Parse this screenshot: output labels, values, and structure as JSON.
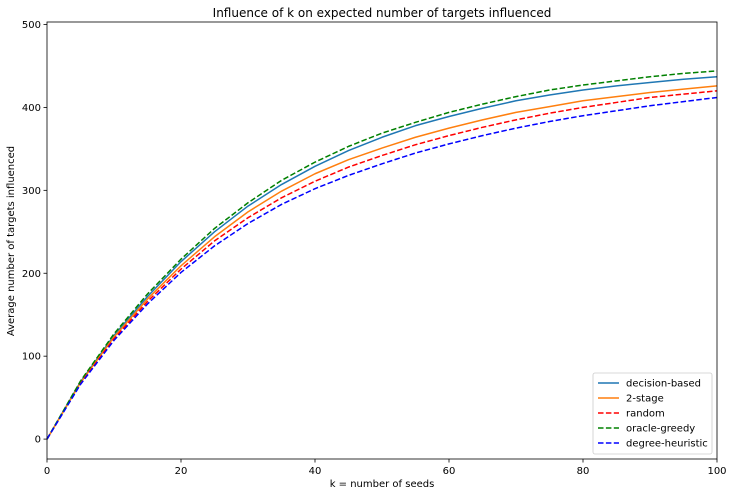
{
  "chart_data": {
    "type": "line",
    "title": "Influence of k on expected number of targets influenced",
    "xlabel": "k = number of seeds",
    "ylabel": "Average number of targets influenced",
    "xlim": [
      0,
      100
    ],
    "ylim": [
      -24,
      503
    ],
    "xticks": [
      0,
      20,
      40,
      60,
      80,
      100
    ],
    "yticks": [
      0,
      100,
      200,
      300,
      400,
      500
    ],
    "grid": false,
    "legend_position": "bottom-right",
    "x": [
      0,
      5,
      10,
      15,
      20,
      25,
      30,
      35,
      40,
      45,
      50,
      55,
      60,
      65,
      70,
      75,
      80,
      85,
      90,
      95,
      100
    ],
    "series": [
      {
        "name": "decision-based",
        "color": "#1f77b4",
        "style": "solid",
        "values": [
          0,
          69,
          125,
          172,
          214,
          250,
          281,
          307,
          329,
          348,
          364,
          378,
          389,
          399,
          408,
          415,
          421,
          426,
          430,
          434,
          437
        ]
      },
      {
        "name": "2-stage",
        "color": "#ff7f0e",
        "style": "solid",
        "values": [
          0,
          68,
          123,
          169,
          209,
          244,
          274,
          299,
          320,
          337,
          351,
          364,
          375,
          385,
          394,
          401,
          408,
          413,
          418,
          422,
          426
        ]
      },
      {
        "name": "random",
        "color": "#ff0000",
        "style": "dashed",
        "values": [
          0,
          67,
          121,
          166,
          205,
          239,
          267,
          291,
          311,
          328,
          342,
          355,
          366,
          376,
          385,
          393,
          400,
          406,
          412,
          416,
          420
        ]
      },
      {
        "name": "oracle-greedy",
        "color": "#008000",
        "style": "dashed",
        "values": [
          0,
          70,
          127,
          175,
          217,
          254,
          285,
          312,
          334,
          353,
          369,
          382,
          394,
          404,
          413,
          421,
          427,
          432,
          437,
          441,
          444
        ]
      },
      {
        "name": "degree-heuristic",
        "color": "#0000ff",
        "style": "dashed",
        "values": [
          0,
          66,
          119,
          163,
          201,
          233,
          260,
          283,
          302,
          318,
          332,
          345,
          356,
          366,
          375,
          383,
          390,
          396,
          402,
          407,
          412
        ]
      }
    ]
  }
}
